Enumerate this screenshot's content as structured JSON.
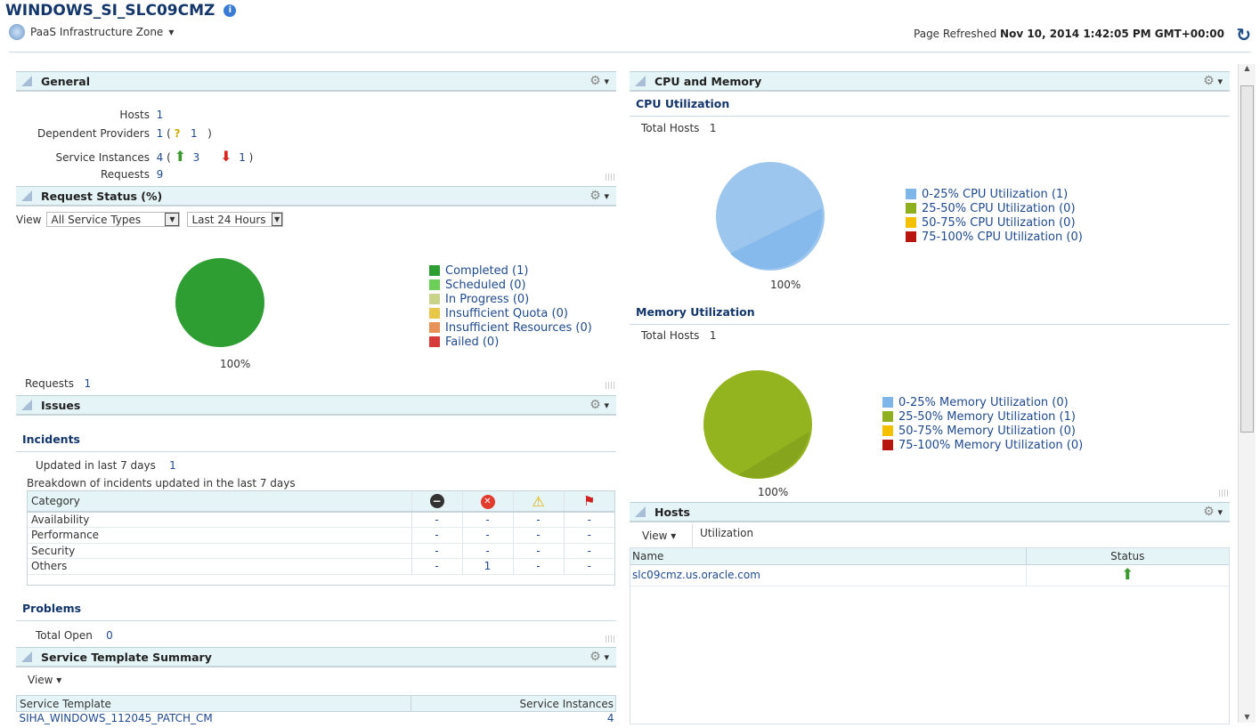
{
  "header": {
    "title": "WINDOWS_SI_SLC09CMZ",
    "zone": "PaaS Infrastructure Zone",
    "refreshed_label": "Page Refreshed",
    "refreshed_value": "Nov 10, 2014 1:42:05 PM GMT+00:00"
  },
  "general": {
    "title": "General",
    "hosts_label": "Hosts",
    "hosts": "1",
    "dep_label": "Dependent Providers",
    "dep": "1",
    "dep_unknown": "1",
    "si_label": "Service Instances",
    "si": "4",
    "si_up": "3",
    "si_down": "1",
    "req_label": "Requests",
    "req": "9"
  },
  "request_status": {
    "title": "Request Status (%)",
    "view_label": "View",
    "service_type": "All Service Types",
    "period": "Last 24 Hours",
    "pie_label": "100%",
    "requests_label": "Requests",
    "requests": "1",
    "legend": [
      {
        "label": "Completed (1)",
        "color": "#2e9e32"
      },
      {
        "label": "Scheduled (0)",
        "color": "#6ccf5a"
      },
      {
        "label": "In Progress (0)",
        "color": "#c9d38a"
      },
      {
        "label": "Insufficient Quota (0)",
        "color": "#e8c74a"
      },
      {
        "label": "Insufficient Resources (0)",
        "color": "#e8925a"
      },
      {
        "label": "Failed (0)",
        "color": "#d63a3a"
      }
    ]
  },
  "issues": {
    "title": "Issues",
    "incidents": "Incidents",
    "updated_label": "Updated in last 7 days",
    "updated": "1",
    "breakdown": "Breakdown of incidents updated in the last 7 days",
    "category": "Category",
    "rows": [
      {
        "c": "Availability",
        "v": [
          "-",
          "-",
          "-",
          "-"
        ]
      },
      {
        "c": "Performance",
        "v": [
          "-",
          "-",
          "-",
          "-"
        ]
      },
      {
        "c": "Security",
        "v": [
          "-",
          "-",
          "-",
          "-"
        ]
      },
      {
        "c": "Others",
        "v": [
          "-",
          "1",
          "-",
          "-"
        ]
      }
    ],
    "problems": "Problems",
    "open_label": "Total Open",
    "open": "0"
  },
  "templates": {
    "title": "Service Template Summary",
    "view": "View",
    "col1": "Service Template",
    "col2": "Service Instances",
    "rows": [
      {
        "name": "SIHA_WINDOWS_112045_PATCH_CM",
        "count": "4"
      }
    ]
  },
  "cpu_mem": {
    "title": "CPU and Memory",
    "cpu_title": "CPU Utilization",
    "mem_title": "Memory Utilization",
    "total_label": "Total Hosts",
    "cpu_total": "1",
    "mem_total": "1",
    "cpu_pie": "100%",
    "mem_pie": "100%",
    "cpu_legend": [
      {
        "label": "0-25% CPU Utilization (1)",
        "color": "#7fb6ea"
      },
      {
        "label": "25-50% CPU Utilization (0)",
        "color": "#8fb01e"
      },
      {
        "label": "50-75% CPU Utilization (0)",
        "color": "#f4c000"
      },
      {
        "label": "75-100% CPU Utilization (0)",
        "color": "#b8150f"
      }
    ],
    "mem_legend": [
      {
        "label": "0-25% Memory Utilization (0)",
        "color": "#7fb6ea"
      },
      {
        "label": "25-50% Memory Utilization (1)",
        "color": "#8fb01e"
      },
      {
        "label": "50-75% Memory Utilization (0)",
        "color": "#f4c000"
      },
      {
        "label": "75-100% Memory Utilization (0)",
        "color": "#b8150f"
      }
    ]
  },
  "hosts": {
    "title": "Hosts",
    "view": "View",
    "tab": "Utilization",
    "col_name": "Name",
    "col_status": "Status",
    "rows": [
      {
        "name": "slc09cmz.us.oracle.com",
        "status": "up"
      }
    ]
  }
}
